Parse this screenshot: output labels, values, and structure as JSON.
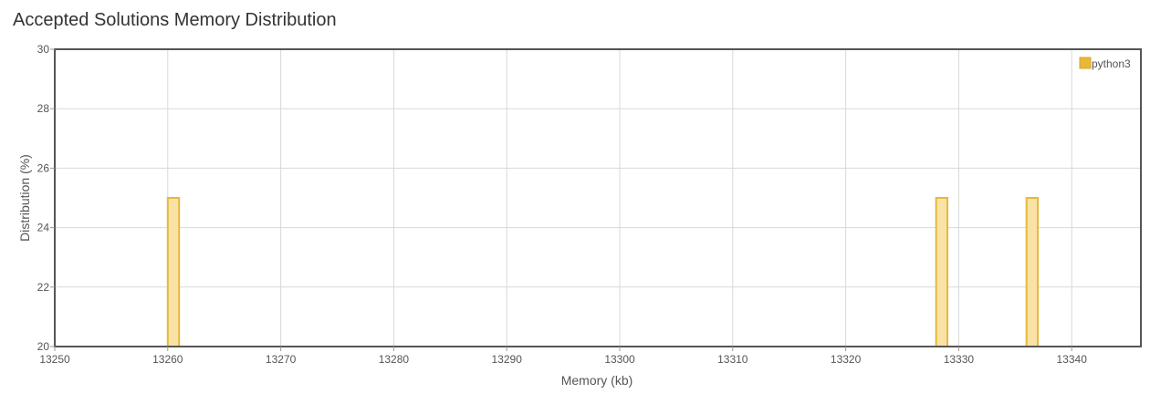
{
  "page": {
    "title": "Accepted Solutions Memory Distribution"
  },
  "chart_data": {
    "type": "bar",
    "title": "Accepted Solutions Memory Distribution",
    "xlabel": "Memory (kb)",
    "ylabel": "Distribution (%)",
    "xlim": [
      13250,
      13346
    ],
    "ylim": [
      20,
      30
    ],
    "x_ticks": [
      13250,
      13260,
      13270,
      13280,
      13290,
      13300,
      13310,
      13320,
      13330,
      13340
    ],
    "y_ticks": [
      20,
      22,
      24,
      26,
      28,
      30
    ],
    "grid": true,
    "legend_position": "top-right",
    "series": [
      {
        "name": "python3",
        "color": "#e8b83a",
        "fill": "#f8e2a6",
        "bar_width_kb": 1,
        "points": [
          {
            "x": 13260.5,
            "y": 25
          },
          {
            "x": 13328.5,
            "y": 25
          },
          {
            "x": 13336.5,
            "y": 25
          }
        ]
      }
    ]
  }
}
